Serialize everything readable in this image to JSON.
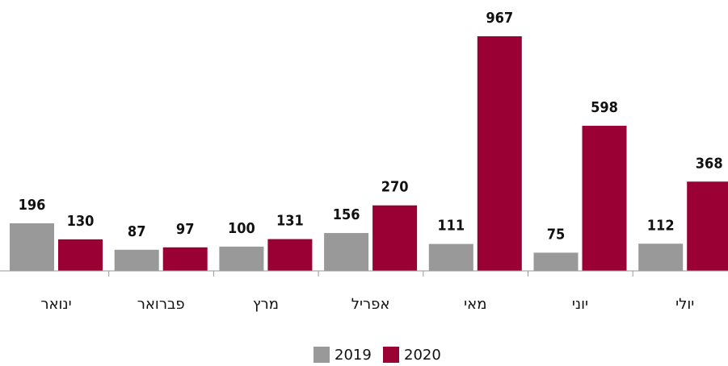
{
  "chart_data": {
    "type": "bar",
    "categories": [
      "ינואר",
      "פברואר",
      "מרץ",
      "אפריל",
      "מאי",
      "יוני",
      "יולי"
    ],
    "series": [
      {
        "name": "2019",
        "color": "#999999",
        "values": [
          196,
          87,
          100,
          156,
          111,
          75,
          112
        ]
      },
      {
        "name": "2020",
        "color": "#9b0034",
        "values": [
          130,
          97,
          131,
          270,
          967,
          598,
          368
        ]
      }
    ],
    "legend": "bottom"
  }
}
